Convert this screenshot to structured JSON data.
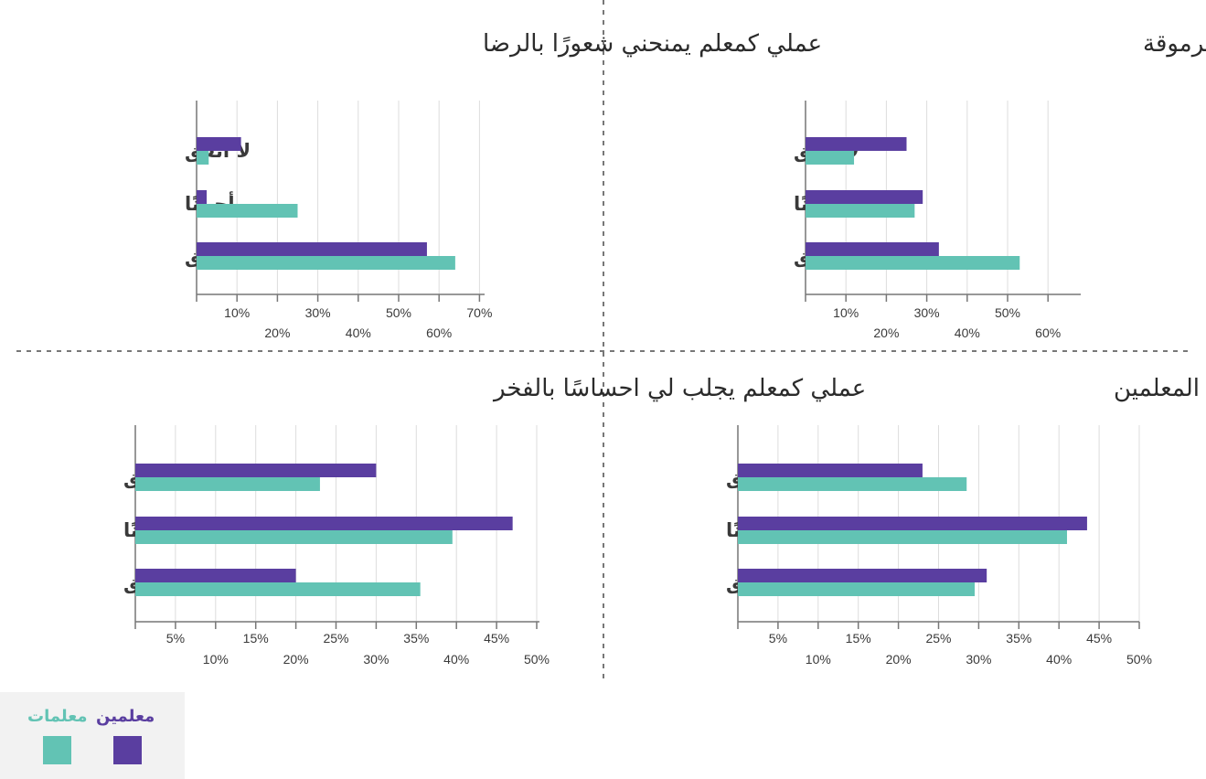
{
  "colors": {
    "men": "#5a3ea0",
    "women": "#62c3b4",
    "grid": "#dddddd",
    "axis": "#777777",
    "divider": "#777777"
  },
  "legend": {
    "men_label": "معلمين",
    "women_label": "معلمات"
  },
  "chart_data": [
    {
      "type": "bar",
      "orientation": "horizontal",
      "title": "عملي كمعلم يمنحني شعورًا بالرضا",
      "categories": [
        "لا أتفق",
        "أحيانًا",
        "أتفق"
      ],
      "series": [
        {
          "name": "معلمين",
          "values": [
            11,
            2.5,
            57
          ]
        },
        {
          "name": "معلمات",
          "values": [
            3,
            25,
            64
          ]
        }
      ],
      "xlim": [
        0,
        72
      ],
      "ticks_upper": [
        "10%",
        "30%",
        "50%",
        "70%"
      ],
      "ticks_lower": [
        "20%",
        "40%",
        "60%"
      ],
      "ticks_upper_values": [
        10,
        30,
        50,
        70
      ],
      "ticks_lower_values": [
        20,
        40,
        60
      ],
      "grid_values": [
        10,
        20,
        30,
        40,
        50,
        60,
        70
      ]
    },
    {
      "type": "bar",
      "orientation": "horizontal",
      "title": "عملي كمعلم يكسبني مكانة اجتماعية مرموقة",
      "categories": [
        "لا أتفق",
        "أحيانًا",
        "أتفق"
      ],
      "series": [
        {
          "name": "معلمين",
          "values": [
            25,
            29,
            33
          ]
        },
        {
          "name": "معلمات",
          "values": [
            12,
            27,
            53
          ]
        }
      ],
      "xlim": [
        0,
        68
      ],
      "ticks_upper": [
        "10%",
        "30%",
        "50%"
      ],
      "ticks_lower": [
        "20%",
        "40%",
        "60%"
      ],
      "ticks_upper_values": [
        10,
        30,
        50
      ],
      "ticks_lower_values": [
        20,
        40,
        60
      ],
      "grid_values": [
        10,
        20,
        30,
        40,
        50,
        60
      ]
    },
    {
      "type": "bar",
      "orientation": "horizontal",
      "title": "عملي كمعلم يجلب لي احساسًا بالفخر",
      "categories": [
        "لا أتفق",
        "أحيانًا",
        "أتفق"
      ],
      "series": [
        {
          "name": "معلمين",
          "values": [
            30,
            47,
            20
          ]
        },
        {
          "name": "معلمات",
          "values": [
            23,
            39.5,
            35.5
          ]
        }
      ],
      "xlim": [
        0,
        50
      ],
      "ticks_upper": [
        "5%",
        "15%",
        "25%",
        "35%",
        "45%"
      ],
      "ticks_lower": [
        "10%",
        "20%",
        "30%",
        "40%",
        "50%"
      ],
      "ticks_upper_values": [
        5,
        15,
        25,
        35,
        45
      ],
      "ticks_lower_values": [
        10,
        20,
        30,
        40,
        50
      ],
      "grid_values": [
        5,
        10,
        15,
        20,
        25,
        30,
        35,
        40,
        45,
        50
      ]
    },
    {
      "type": "bar",
      "orientation": "horizontal",
      "title": "أشعر أن المجتمع يقدر ويحترم المعلمين",
      "categories": [
        "لا أتفق",
        "أحيانًا",
        "أتفق"
      ],
      "series": [
        {
          "name": "معلمين",
          "values": [
            23,
            43.5,
            31
          ]
        },
        {
          "name": "معلمات",
          "values": [
            28.5,
            41,
            29.5
          ]
        }
      ],
      "xlim": [
        0,
        50
      ],
      "ticks_upper": [
        "5%",
        "15%",
        "25%",
        "35%",
        "45%"
      ],
      "ticks_lower": [
        "10%",
        "20%",
        "30%",
        "40%",
        "50%"
      ],
      "ticks_upper_values": [
        5,
        15,
        25,
        35,
        45
      ],
      "ticks_lower_values": [
        10,
        20,
        30,
        40,
        50
      ],
      "grid_values": [
        5,
        10,
        15,
        20,
        25,
        30,
        35,
        40,
        45,
        50
      ]
    }
  ]
}
